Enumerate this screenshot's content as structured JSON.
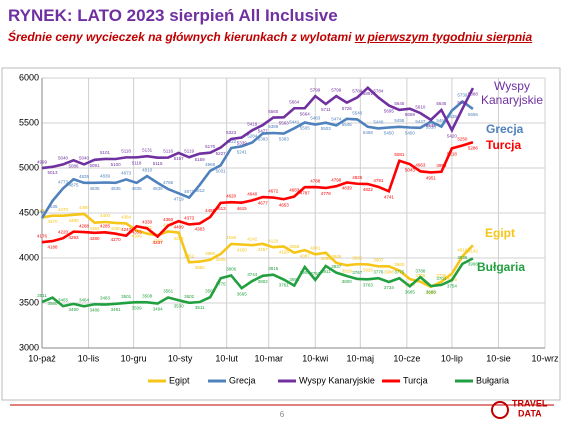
{
  "chart_data": {
    "type": "line",
    "title": "RYNEK: LATO 2023 sierpień All Inclusive",
    "subtitle": "Średnie ceny wycieczek na głównych kierunkach z wylotami ",
    "subtitle_underlined": "w pierwszym tygodniu sierpnia",
    "page_number": "6",
    "logo": [
      "TRAVEL",
      "DATA"
    ],
    "x": [
      0,
      7,
      14,
      21,
      28,
      35,
      42,
      49,
      56,
      63,
      70,
      77,
      84,
      91,
      98,
      105,
      112,
      119,
      126,
      133,
      140,
      147,
      154,
      161,
      168,
      175,
      182,
      189,
      196,
      203,
      210,
      217,
      224,
      231,
      238,
      245,
      252,
      259,
      266,
      273,
      280,
      287
    ],
    "xlim": [
      0,
      335
    ],
    "xticks": [
      {
        "value": 0,
        "label": "10-paź"
      },
      {
        "value": 31,
        "label": "10-lis"
      },
      {
        "value": 61,
        "label": "10-gru"
      },
      {
        "value": 92,
        "label": "10-sty"
      },
      {
        "value": 123,
        "label": "10-lut"
      },
      {
        "value": 151,
        "label": "10-mar"
      },
      {
        "value": 182,
        "label": "10-kwi"
      },
      {
        "value": 212,
        "label": "10-maj"
      },
      {
        "value": 243,
        "label": "10-cze"
      },
      {
        "value": 273,
        "label": "10-lip"
      },
      {
        "value": 304,
        "label": "10-sie"
      },
      {
        "value": 335,
        "label": "10-wrz"
      }
    ],
    "ylim": [
      3000,
      6000
    ],
    "yticks": [
      3000,
      3500,
      4000,
      4500,
      5000,
      5500,
      6000
    ],
    "grid": true,
    "series": [
      {
        "name": "Egipt",
        "color": "#f5c518",
        "values": [
          4450,
          4470,
          4470,
          4480,
          4490,
          4393,
          4400,
          4390,
          4384,
          4306,
          4271,
          4253,
          4295,
          4282,
          3952,
          3960,
          3980,
          4045,
          4156,
          4150,
          4142,
          4157,
          4120,
          4128,
          4058,
          4087,
          4041,
          4058,
          3946,
          3919,
          3932,
          3928,
          3907,
          3908,
          3860,
          3766,
          3736,
          3680,
          3736,
          3826,
          4018,
          4142
        ]
      },
      {
        "name": "Grecja",
        "color": "#4f81bd",
        "values": [
          4443,
          4635,
          4773,
          4875,
          4835,
          4835,
          4839,
          4835,
          4873,
          4835,
          4910,
          4835,
          4766,
          4719,
          4671,
          4812,
          4968,
          5031,
          5222,
          5241,
          5284,
          5383,
          5389,
          5383,
          5441,
          5505,
          5483,
          5503,
          5474,
          5546,
          5540,
          5458,
          5440,
          5450,
          5458,
          5450,
          5447,
          5516,
          5460,
          5638,
          5739,
          5656
        ]
      },
      {
        "name": "Wyspy Kanaryjskie",
        "color": "#7030a0",
        "values": [
          4999,
          5013,
          5040,
          5086,
          5040,
          5091,
          5101,
          5100,
          5118,
          5118,
          5131,
          5115,
          5116,
          5167,
          5119,
          5159,
          5170,
          5227,
          5323,
          5339,
          5419,
          5477,
          5560,
          5563,
          5664,
          5664,
          5799,
          5711,
          5799,
          5726,
          5784,
          5891,
          5784,
          5695,
          5645,
          5659,
          5610,
          5535,
          5645,
          5420,
          5658,
          5888
        ]
      },
      {
        "name": "Turcja",
        "color": "#ff0000",
        "values": [
          4176,
          4188,
          4220,
          4293,
          4288,
          4280,
          4285,
          4270,
          4247,
          4353,
          4330,
          4237,
          4360,
          4409,
          4373,
          4383,
          4455,
          4613,
          4620,
          4615,
          4640,
          4677,
          4672,
          4653,
          4683,
          4787,
          4788,
          4778,
          4798,
          4839,
          4825,
          4822,
          4791,
          4741,
          5081,
          5043,
          4963,
          4951,
          4958,
          5218,
          5250,
          5286
        ]
      },
      {
        "name": "Bułgaria",
        "color": "#22a040",
        "values": [
          3511,
          3560,
          3465,
          3490,
          3464,
          3486,
          3483,
          3491,
          3501,
          3509,
          3508,
          3494,
          3561,
          3530,
          3502,
          3511,
          3564,
          3775,
          3806,
          3665,
          3744,
          3802,
          3815,
          3761,
          3693,
          3900,
          3757,
          3911,
          3837,
          3800,
          3767,
          3763,
          3776,
          3734,
          3775,
          3685,
          3788,
          3688,
          3701,
          3754,
          3935,
          3996
        ]
      }
    ]
  }
}
